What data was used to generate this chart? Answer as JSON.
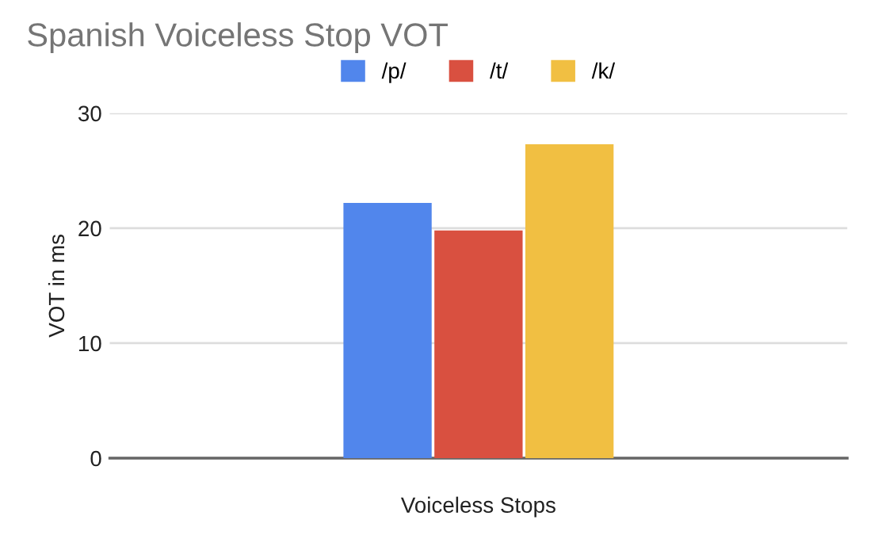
{
  "chart_data": {
    "type": "bar",
    "title": "Spanish Voiceless Stop VOT",
    "xlabel": "Voiceless Stops",
    "ylabel": "VOT in ms",
    "categories": [
      null
    ],
    "series": [
      {
        "name": "/p/",
        "color": "#5186ec",
        "values": [
          22.2
        ]
      },
      {
        "name": "/t/",
        "color": "#d95040",
        "values": [
          19.8
        ]
      },
      {
        "name": "/k/",
        "color": "#f1bf42",
        "values": [
          27.3
        ]
      }
    ],
    "ylim": [
      0,
      30
    ],
    "yticks": [
      0,
      10,
      20,
      30
    ],
    "grid": "y",
    "legend": "top"
  }
}
